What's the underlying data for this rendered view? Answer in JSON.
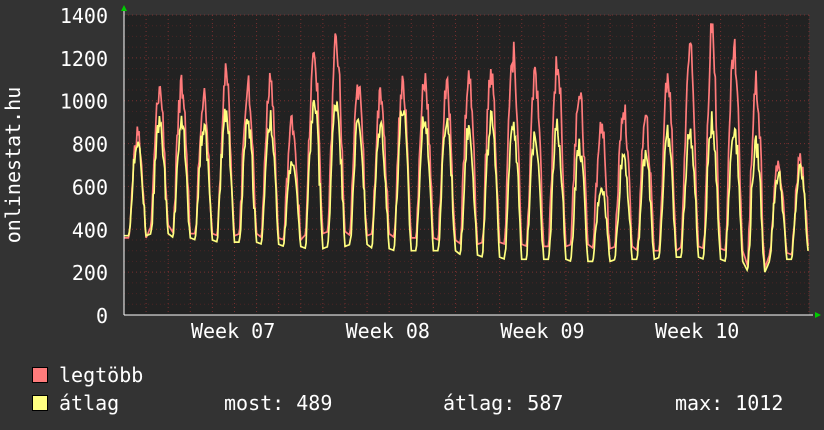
{
  "chart_data": {
    "type": "line",
    "ylabel": "onlinestat.hu",
    "ylim": [
      0,
      1400
    ],
    "yticks": [
      0,
      200,
      400,
      600,
      800,
      1000,
      1200,
      1400
    ],
    "x_tick_labels": [
      "Week 07",
      "Week 08",
      "Week 09",
      "Week 10"
    ],
    "days": 31,
    "background": "#222222",
    "grid": true,
    "series": [
      {
        "name": "legtöbb",
        "color": "#ff7b7b",
        "peaks": [
          850,
          1050,
          1060,
          1030,
          1110,
          1080,
          1110,
          900,
          1200,
          1260,
          1050,
          1030,
          1080,
          1110,
          1050,
          1100,
          1120,
          1210,
          1100,
          1180,
          1050,
          880,
          960,
          900,
          1100,
          1250,
          1300,
          1240,
          1090,
          700,
          730
        ],
        "troughs": [
          360,
          420,
          380,
          380,
          370,
          380,
          360,
          350,
          380,
          390,
          370,
          380,
          360,
          360,
          350,
          330,
          340,
          330,
          320,
          320,
          330,
          310,
          320,
          300,
          300,
          320,
          310,
          300,
          220,
          290,
          280
        ]
      },
      {
        "name": "átlag",
        "color": "#ffff80",
        "peaks": [
          820,
          900,
          890,
          880,
          950,
          900,
          910,
          720,
          990,
          1000,
          900,
          880,
          960,
          930,
          900,
          870,
          910,
          910,
          850,
          870,
          780,
          600,
          750,
          740,
          840,
          850,
          900,
          880,
          790,
          660,
          680
        ],
        "troughs": [
          370,
          380,
          360,
          350,
          340,
          340,
          330,
          320,
          310,
          320,
          330,
          310,
          300,
          300,
          300,
          280,
          270,
          260,
          260,
          260,
          250,
          250,
          260,
          260,
          270,
          270,
          260,
          250,
          200,
          260,
          260
        ],
        "current": 489
      }
    ]
  },
  "legend": {
    "max_name": "legtöbb",
    "avg_name": "átlag",
    "stat_now": "most: 489",
    "stat_avg": "átlag: 587",
    "stat_max": "max: 1012"
  }
}
